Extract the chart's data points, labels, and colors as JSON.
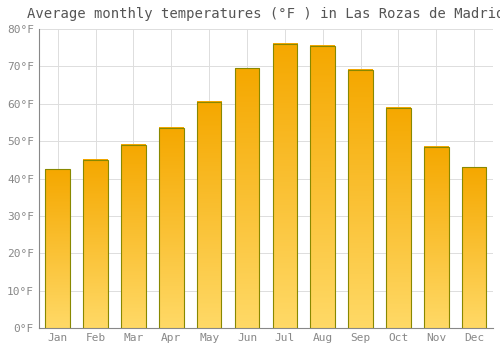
{
  "title": "Average monthly temperatures (°F ) in Las Rozas de Madrid",
  "months": [
    "Jan",
    "Feb",
    "Mar",
    "Apr",
    "May",
    "Jun",
    "Jul",
    "Aug",
    "Sep",
    "Oct",
    "Nov",
    "Dec"
  ],
  "temperatures": [
    42.5,
    45.0,
    49.0,
    53.5,
    60.5,
    69.5,
    76.0,
    75.5,
    69.0,
    59.0,
    48.5,
    43.0
  ],
  "bar_color_top": "#F5A800",
  "bar_color_bottom": "#FFD966",
  "bar_edge_color": "#888800",
  "ylim": [
    0,
    80
  ],
  "yticks": [
    0,
    10,
    20,
    30,
    40,
    50,
    60,
    70,
    80
  ],
  "ytick_labels": [
    "0°F",
    "10°F",
    "20°F",
    "30°F",
    "40°F",
    "50°F",
    "60°F",
    "70°F",
    "80°F"
  ],
  "background_color": "#FFFFFF",
  "grid_color": "#DDDDDD",
  "title_fontsize": 10,
  "tick_fontsize": 8,
  "font_family": "monospace"
}
